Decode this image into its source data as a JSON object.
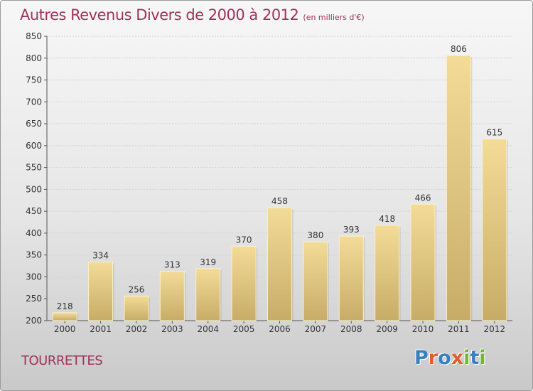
{
  "title": {
    "main": "Autres Revenus Divers de 2000 à 2012",
    "unit": "(en milliers d'€)"
  },
  "location": "TOURRETTES",
  "logo": {
    "text": "Proxiti",
    "letter_colors": [
      "#3a7fc1",
      "#e0602a",
      "#3a7fc1",
      "#e0602a",
      "#76b82a",
      "#3a7fc1",
      "#76b82a"
    ]
  },
  "colors": {
    "title": "#a0325a",
    "bar_light": "#f3dc98",
    "bar_dark": "#c7ac67",
    "grid": "#d2d2d2"
  },
  "chart_data": {
    "type": "bar",
    "title": "Autres Revenus Divers de 2000 à 2012",
    "subtitle": "(en milliers d'€)",
    "categories": [
      "2000",
      "2001",
      "2002",
      "2003",
      "2004",
      "2005",
      "2006",
      "2007",
      "2008",
      "2009",
      "2010",
      "2011",
      "2012"
    ],
    "values": [
      218,
      334,
      256,
      313,
      319,
      370,
      458,
      380,
      393,
      418,
      466,
      806,
      615
    ],
    "ylim": [
      200,
      850
    ],
    "yticks": [
      200,
      250,
      300,
      350,
      400,
      450,
      500,
      550,
      600,
      650,
      700,
      750,
      800,
      850
    ],
    "grid": true,
    "legend": "none"
  }
}
